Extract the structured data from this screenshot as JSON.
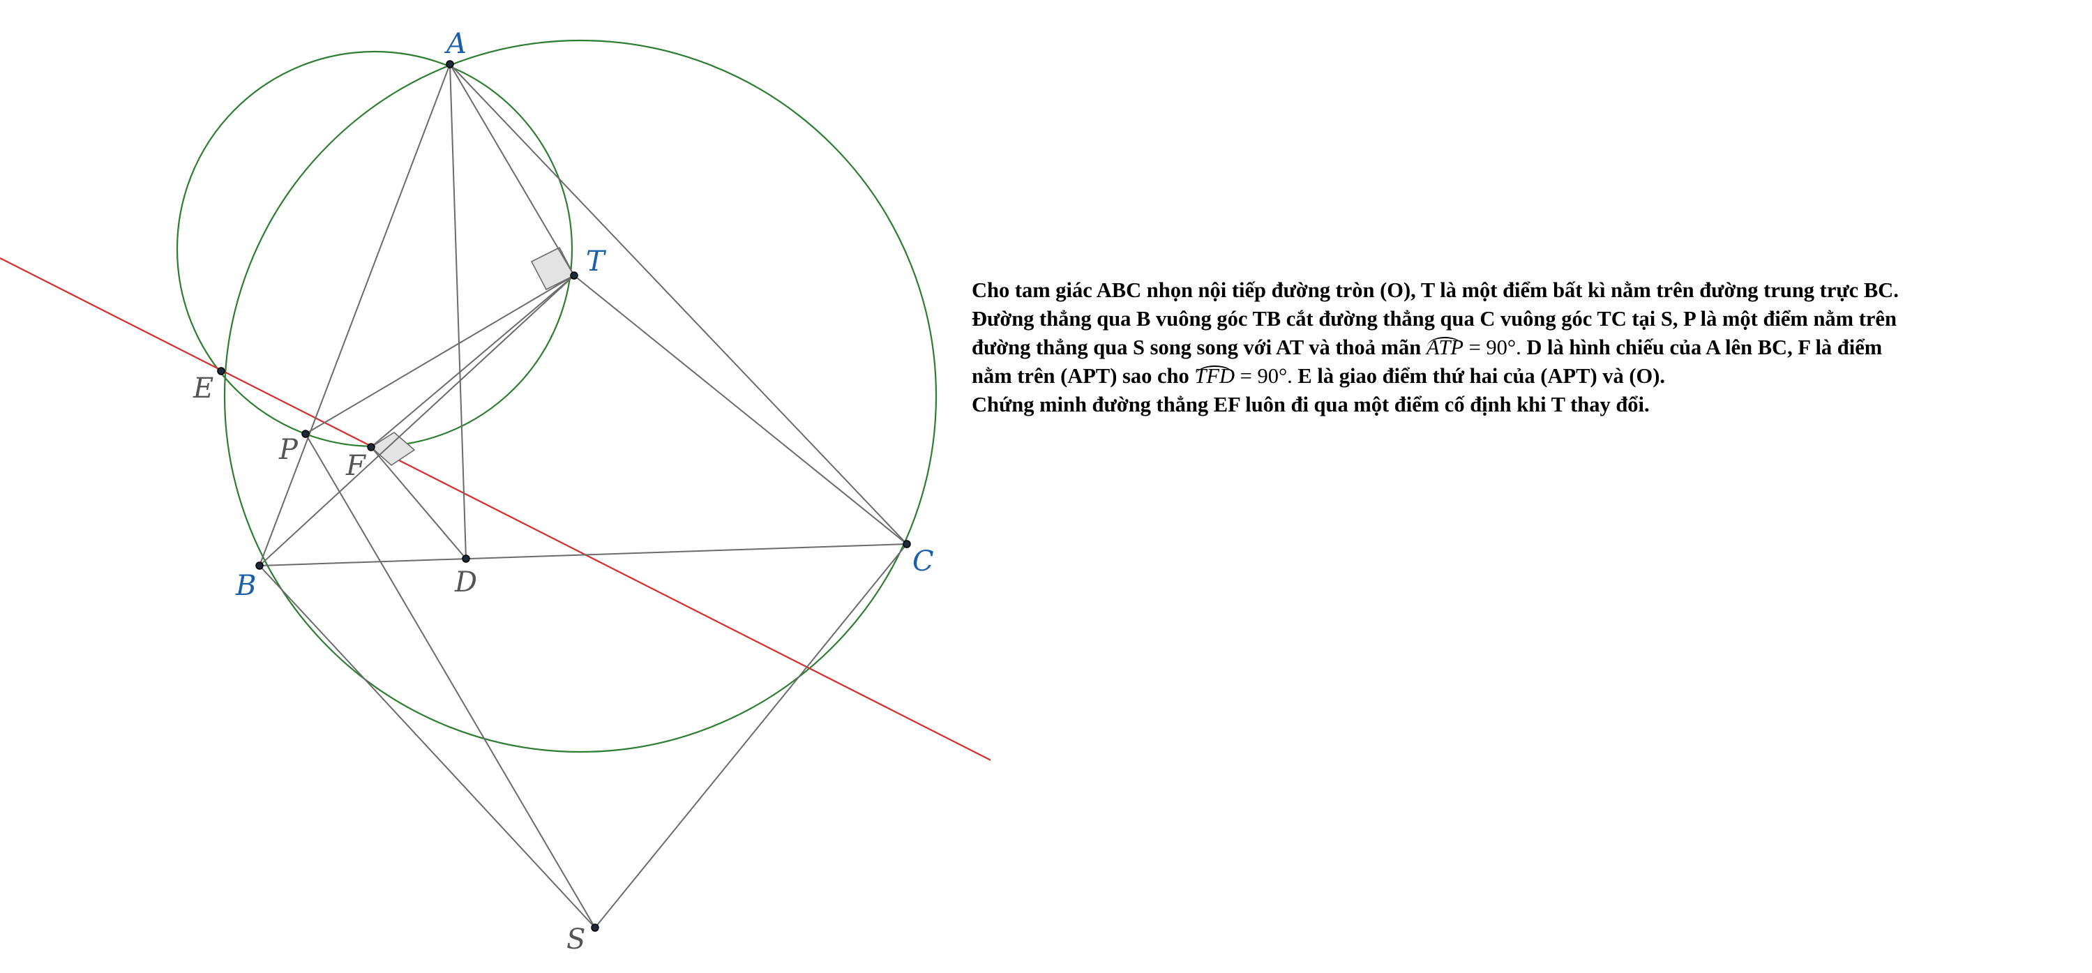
{
  "colors": {
    "circle": "#2e7d32",
    "segment": "#6b6b6b",
    "red_line": "#d32f2f",
    "blue_label": "#1a5fa8",
    "gray_label": "#555555",
    "right_angle_fill": "#e3e3e3",
    "point": "#1c2a3a"
  },
  "labels": {
    "A": "A",
    "B": "B",
    "C": "C",
    "T": "T",
    "E": "E",
    "P": "P",
    "F": "F",
    "D": "D",
    "S": "S"
  },
  "problem": {
    "line1": "Cho tam giác ABC nhọn nội tiếp đường tròn (O), T là một điểm bất kì nằm trên đường trung trực BC.",
    "line2": "Đường thẳng qua B vuông góc TB cắt đường thẳng qua C vuông góc TC tại S, P là một điểm nằm trên",
    "line3_before": "đường thẳng qua S song song với AT và thoả mãn",
    "angle1": "ATP",
    "angle_value": "= 90°.",
    "line3_after": "D là hình chiếu của A lên BC, F là điểm",
    "line4_before": "nằm trên (APT) sao cho",
    "angle2": "TFD",
    "line4_after": "E là giao điểm thứ hai của (APT) và (O).",
    "line5": "Chứng minh đường thẳng EF luôn đi qua một điểm cố định khi T thay đổi."
  }
}
